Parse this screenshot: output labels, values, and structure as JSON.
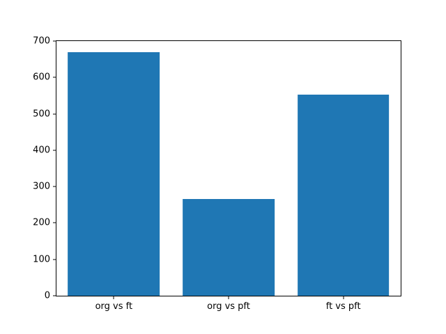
{
  "chart_data": {
    "type": "bar",
    "categories": [
      "org vs ft",
      "org vs pft",
      "ft vs pft"
    ],
    "values": [
      670,
      265,
      553
    ],
    "title": "",
    "xlabel": "",
    "ylabel": "",
    "ylim": [
      0,
      700
    ],
    "yticks": [
      0,
      100,
      200,
      300,
      400,
      500,
      600,
      700
    ],
    "bar_color": "#1f77b4",
    "bar_width_fraction": 0.8,
    "grid": false,
    "legend": null,
    "background_color": "#ffffff",
    "axis_color": "#000000"
  }
}
